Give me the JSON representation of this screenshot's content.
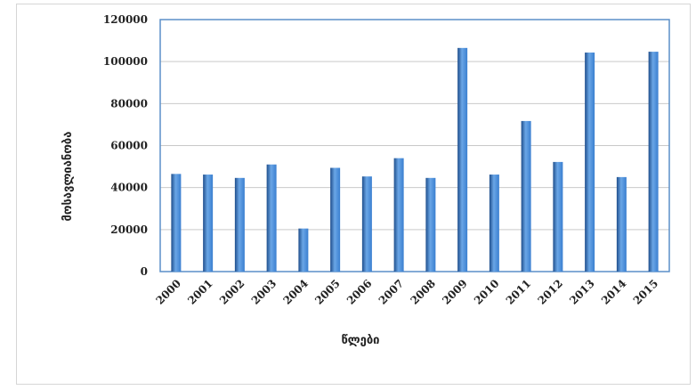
{
  "chart_data": {
    "type": "bar",
    "title": "",
    "xlabel": "წლები",
    "ylabel": "მოსავლიანობა",
    "categories": [
      "2000",
      "2001",
      "2002",
      "2003",
      "2004",
      "2005",
      "2006",
      "2007",
      "2008",
      "2009",
      "2010",
      "2011",
      "2012",
      "2013",
      "2014",
      "2015"
    ],
    "values": [
      46500,
      46200,
      44600,
      51000,
      20500,
      49400,
      45300,
      54000,
      44600,
      106500,
      46200,
      71700,
      52200,
      104300,
      45000,
      104700
    ],
    "ylim": [
      0,
      120000
    ],
    "yticks": [
      "0",
      "20000",
      "40000",
      "60000",
      "80000",
      "100000",
      "120000"
    ],
    "grid": true,
    "legend": "none",
    "colors": {
      "bar_dark": "#1f4e8c",
      "bar_mid": "#3a7fd0",
      "bar_light": "#6aa6e6",
      "plot_border": "#5b8fc9",
      "grid": "#c9c9c9"
    }
  }
}
